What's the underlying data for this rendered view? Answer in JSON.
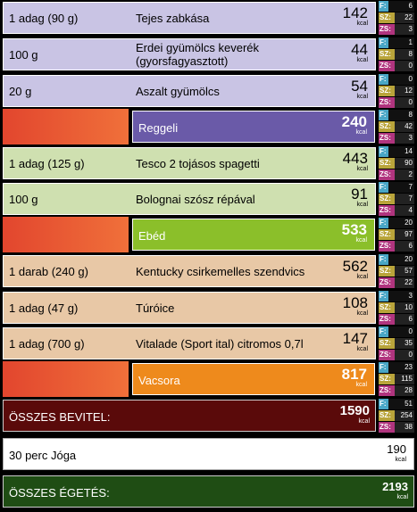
{
  "unit": "kcal",
  "macro_labels": {
    "f": "F:",
    "sz": "SZ:",
    "zs": "ZS:"
  },
  "breakfast": {
    "items": [
      {
        "qty": "1 adag (90 g)",
        "name": "Tejes zabkása",
        "kcal": "142",
        "f": "6",
        "sz": "22",
        "zs": "3"
      },
      {
        "qty": "100 g",
        "name": "Erdei gyümölcs keverék (gyorsfagyasztott)",
        "kcal": "44",
        "f": "1",
        "sz": "8",
        "zs": "0"
      },
      {
        "qty": "20 g",
        "name": "Aszalt gyümölcs",
        "kcal": "54",
        "f": "0",
        "sz": "12",
        "zs": "0"
      }
    ],
    "label": "Reggeli",
    "kcal": "240",
    "f": "8",
    "sz": "42",
    "zs": "3"
  },
  "lunch": {
    "items": [
      {
        "qty": "1 adag (125 g)",
        "name": "Tesco 2 tojásos spagetti",
        "kcal": "443",
        "f": "14",
        "sz": "90",
        "zs": "2"
      },
      {
        "qty": "100 g",
        "name": "Bolognai szósz répával",
        "kcal": "91",
        "f": "7",
        "sz": "7",
        "zs": "4"
      }
    ],
    "label": "Ebéd",
    "kcal": "533",
    "f": "20",
    "sz": "97",
    "zs": "6"
  },
  "dinner": {
    "items": [
      {
        "qty": "1 darab (240 g)",
        "name": "Kentucky csirkemelles szendvics",
        "kcal": "562",
        "f": "20",
        "sz": "57",
        "zs": "22"
      },
      {
        "qty": "1 adag (47 g)",
        "name": "Túróice",
        "kcal": "108",
        "f": "3",
        "sz": "10",
        "zs": "6"
      },
      {
        "qty": "1 adag (700 g)",
        "name": "Vitalade (Sport ital) citromos 0,7l",
        "kcal": "147",
        "f": "0",
        "sz": "35",
        "zs": "0"
      }
    ],
    "label": "Vacsora",
    "kcal": "817",
    "f": "23",
    "sz": "115",
    "zs": "28"
  },
  "intake": {
    "label": "ÖSSZES BEVITEL:",
    "kcal": "1590",
    "f": "51",
    "sz": "254",
    "zs": "38"
  },
  "activity": {
    "label": "30 perc Jóga",
    "kcal": "190"
  },
  "burned": {
    "label": "ÖSSZES ÉGETÉS:",
    "kcal": "2193"
  },
  "colors": {
    "breakfast": "#6a5aa8",
    "lunch": "#8bbf2a",
    "dinner": "#ee8a1c",
    "intake": "#5a0a0a",
    "burned": "#1f4d14"
  }
}
